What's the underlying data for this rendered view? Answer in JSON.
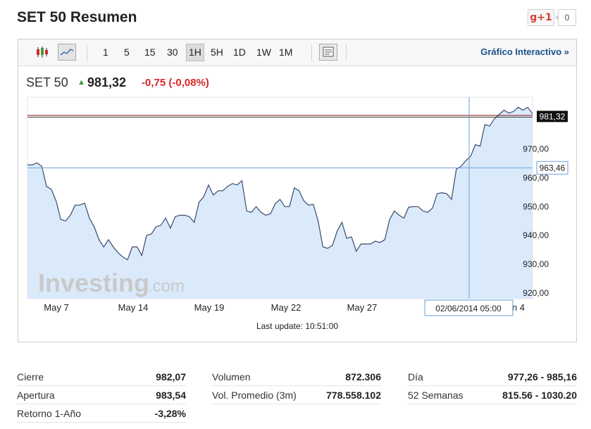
{
  "header": {
    "title": "SET 50 Resumen",
    "gplus_label": "g+1",
    "gplus_count": "0"
  },
  "toolbar": {
    "intervals": [
      "1",
      "5",
      "15",
      "30",
      "1H",
      "5H",
      "1D",
      "1W",
      "1M"
    ],
    "active_interval": "1H",
    "interactive_link": "Gráfico Interactivo",
    "interactive_link_arrow": "»",
    "icons": [
      "candlestick-chart-icon",
      "line-chart-icon",
      "chart-options-icon"
    ]
  },
  "quote": {
    "name": "SET 50",
    "arrow": "▲",
    "price": "981,32",
    "change": "-0,75 (-0,08%)"
  },
  "chart_data": {
    "type": "area",
    "x_tick_labels": [
      "May 7",
      "May 14",
      "May 19",
      "May 22",
      "May 27",
      "n 4"
    ],
    "y_tick_labels": [
      "920,00",
      "930,00",
      "940,00",
      "950,00",
      "960,00",
      "970,00"
    ],
    "ylim": [
      918,
      988
    ],
    "current_price_label": "981,32",
    "cursor_price_label": "963,46",
    "cursor_date_label": "02/06/2014 05:00",
    "watermark": "Investing",
    "watermark_suffix": ".com",
    "series": [
      {
        "values": [
          964.5,
          964.5,
          965.2,
          964,
          957,
          956,
          952,
          945.5,
          945,
          947,
          950.5,
          950.5,
          951.2,
          946,
          943,
          938.5,
          936,
          938.5,
          936,
          934,
          932.5,
          931.5,
          936,
          936,
          933,
          940,
          940.5,
          943,
          943.5,
          946,
          942.5,
          946.5,
          947,
          947,
          946.5,
          944.5,
          951.5,
          953.5,
          957.5,
          954,
          955.5,
          955.5,
          957,
          958,
          957.5,
          959,
          948.5,
          948,
          950,
          948,
          947,
          947.5,
          951,
          952.5,
          950,
          950,
          956.5,
          955.5,
          952,
          950.5,
          950.8,
          945,
          936,
          935.5,
          936.5,
          941.5,
          944.5,
          939,
          939.5,
          934.5,
          937,
          937,
          937,
          938,
          937.5,
          938.5,
          945.5,
          948.5,
          947,
          946,
          949.8,
          950,
          950,
          948.5,
          948,
          949.5,
          954.5,
          954.8,
          954.5,
          952.5,
          963,
          964,
          966,
          967.5,
          971.5,
          971,
          978.5,
          978,
          980.5,
          982,
          983.5,
          982.5,
          983,
          984.5,
          983.5,
          984.5,
          982.2
        ]
      }
    ],
    "grid": false
  },
  "footer": {
    "last_update": "Last update: 10:51:00"
  },
  "stats": {
    "col1": [
      {
        "label": "Cierre",
        "value": "982,07"
      },
      {
        "label": "Apertura",
        "value": "983,54"
      },
      {
        "label": "Retorno 1-Año",
        "value": "-3,28%"
      }
    ],
    "col2": [
      {
        "label": "Volumen",
        "value": "872.306"
      },
      {
        "label": "Vol. Promedio (3m)",
        "value": "778.558.102"
      }
    ],
    "col3": [
      {
        "label": "Día",
        "value": "977,26 - 985,16"
      },
      {
        "label": "52 Semanas",
        "value": "815.56 - 1030.20"
      }
    ]
  }
}
